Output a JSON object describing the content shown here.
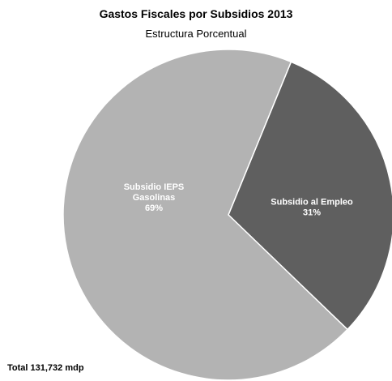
{
  "chart_data": {
    "type": "pie",
    "title": "Gastos Fiscales por Subsidios 2013",
    "subtitle": "Estructura Porcentual",
    "slices": [
      {
        "label_lines": [
          "Subsidio al Empleo",
          "31%"
        ],
        "value": 31,
        "color": "#5f5f5f"
      },
      {
        "label_lines": [
          "Subsidio IEPS",
          "Gasolinas",
          "69%"
        ],
        "value": 69,
        "color": "#b3b3b3"
      }
    ],
    "start_angle_deg": 22.3,
    "direction": "clockwise",
    "border_color": "#ffffff",
    "label_color": "#ffffff"
  },
  "footer": "Total 131,732 mdp"
}
